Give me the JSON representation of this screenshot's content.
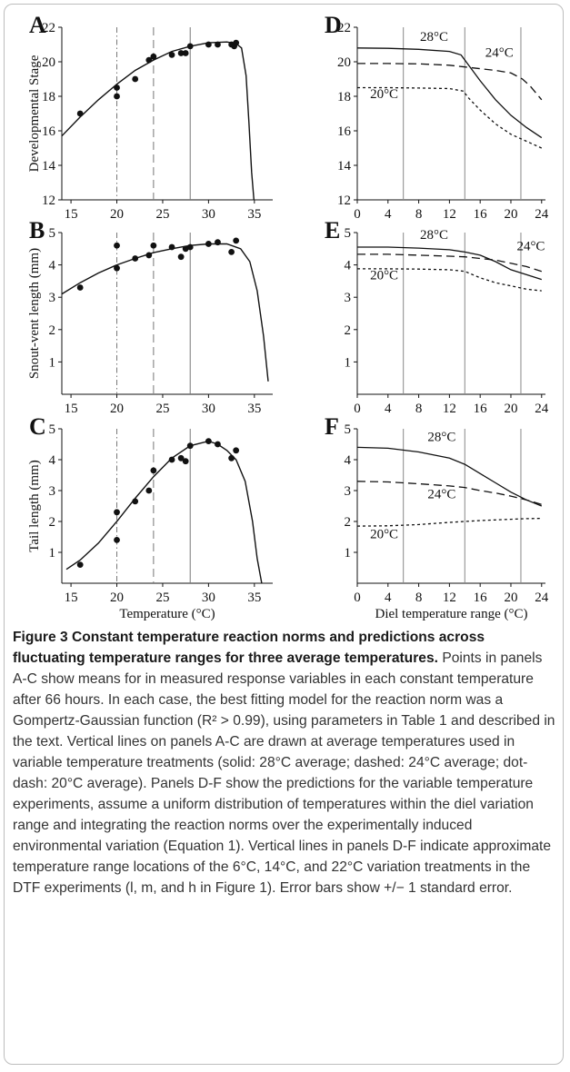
{
  "chart_data": [
    {
      "panel": "A",
      "type": "scatter",
      "ylabel": "Developmental Stage",
      "xlabel": "",
      "xlim": [
        14,
        37
      ],
      "ylim": [
        12,
        22
      ],
      "xticks": [
        15,
        20,
        25,
        30,
        35
      ],
      "yticks": [
        12,
        14,
        16,
        18,
        20,
        22
      ],
      "points": [
        [
          16,
          17.0
        ],
        [
          20,
          18.0
        ],
        [
          20,
          18.5
        ],
        [
          22,
          19.0
        ],
        [
          23.5,
          20.1
        ],
        [
          24,
          20.3
        ],
        [
          26,
          20.4
        ],
        [
          27,
          20.5
        ],
        [
          27.5,
          20.5
        ],
        [
          28,
          20.9
        ],
        [
          30,
          21.0
        ],
        [
          31,
          21.0
        ],
        [
          32.5,
          21.0
        ],
        [
          32.8,
          20.9
        ],
        [
          33,
          21.1
        ]
      ],
      "fit": [
        [
          14,
          15.7
        ],
        [
          16,
          16.8
        ],
        [
          18,
          17.8
        ],
        [
          20,
          18.7
        ],
        [
          22,
          19.5
        ],
        [
          24,
          20.1
        ],
        [
          26,
          20.6
        ],
        [
          28,
          20.9
        ],
        [
          30,
          21.1
        ],
        [
          32,
          21.15
        ],
        [
          33,
          21.05
        ],
        [
          33.6,
          20.8
        ],
        [
          34.1,
          19.2
        ],
        [
          34.4,
          16.5
        ],
        [
          34.7,
          13.6
        ],
        [
          34.95,
          12.0
        ]
      ],
      "verticals": {
        "solid": 28,
        "dashed": 24,
        "dotdash": 20
      }
    },
    {
      "panel": "B",
      "type": "scatter",
      "ylabel": "Snout-vent length (mm)",
      "xlabel": "",
      "xlim": [
        14,
        37
      ],
      "ylim": [
        0,
        5
      ],
      "xticks": [
        15,
        20,
        25,
        30,
        35
      ],
      "yticks": [
        1,
        2,
        3,
        4,
        5
      ],
      "points": [
        [
          16,
          3.3
        ],
        [
          20,
          3.9
        ],
        [
          20,
          4.6
        ],
        [
          22,
          4.2
        ],
        [
          23.5,
          4.3
        ],
        [
          24,
          4.6
        ],
        [
          26,
          4.55
        ],
        [
          27,
          4.25
        ],
        [
          27.5,
          4.5
        ],
        [
          28,
          4.55
        ],
        [
          30,
          4.65
        ],
        [
          31,
          4.7
        ],
        [
          32.5,
          4.4
        ],
        [
          33,
          4.75
        ]
      ],
      "fit": [
        [
          14,
          3.1
        ],
        [
          16,
          3.45
        ],
        [
          18,
          3.75
        ],
        [
          20,
          4.0
        ],
        [
          22,
          4.2
        ],
        [
          24,
          4.38
        ],
        [
          26,
          4.5
        ],
        [
          28,
          4.6
        ],
        [
          30,
          4.65
        ],
        [
          32,
          4.65
        ],
        [
          33.5,
          4.5
        ],
        [
          34.5,
          4.1
        ],
        [
          35.3,
          3.2
        ],
        [
          36,
          1.8
        ],
        [
          36.5,
          0.4
        ]
      ],
      "verticals": {
        "solid": 28,
        "dashed": 24,
        "dotdash": 20
      }
    },
    {
      "panel": "C",
      "type": "scatter",
      "ylabel": "Tail length (mm)",
      "xlabel": "Temperature (°C)",
      "xlim": [
        14,
        37
      ],
      "ylim": [
        0,
        5
      ],
      "xticks": [
        15,
        20,
        25,
        30,
        35
      ],
      "yticks": [
        1,
        2,
        3,
        4,
        5
      ],
      "points": [
        [
          16,
          0.6
        ],
        [
          20,
          1.4
        ],
        [
          20,
          2.3
        ],
        [
          22,
          2.65
        ],
        [
          23.5,
          3.0
        ],
        [
          24,
          3.65
        ],
        [
          26,
          4.0
        ],
        [
          27,
          4.05
        ],
        [
          27.5,
          3.95
        ],
        [
          28,
          4.45
        ],
        [
          30,
          4.6
        ],
        [
          31,
          4.5
        ],
        [
          32.5,
          4.05
        ],
        [
          33,
          4.3
        ]
      ],
      "fit": [
        [
          14.5,
          0.45
        ],
        [
          16,
          0.75
        ],
        [
          18,
          1.3
        ],
        [
          20,
          2.0
        ],
        [
          22,
          2.75
        ],
        [
          24,
          3.45
        ],
        [
          26,
          4.05
        ],
        [
          28,
          4.45
        ],
        [
          30,
          4.6
        ],
        [
          31,
          4.5
        ],
        [
          32,
          4.3
        ],
        [
          33,
          4.0
        ],
        [
          34,
          3.3
        ],
        [
          34.8,
          2.0
        ],
        [
          35.3,
          0.8
        ],
        [
          35.8,
          0.0
        ]
      ],
      "verticals": {
        "solid": 28,
        "dashed": 24,
        "dotdash": 20
      }
    },
    {
      "panel": "D",
      "type": "line",
      "xlabel": "",
      "ylabel": "",
      "xlim": [
        0,
        24.5
      ],
      "ylim": [
        12,
        22
      ],
      "xticks": [
        0,
        4,
        8,
        12,
        16,
        20,
        24
      ],
      "yticks": [
        12,
        14,
        16,
        18,
        20,
        22
      ],
      "verticals": [
        6,
        14,
        21.3
      ],
      "series": [
        {
          "name": "28°C",
          "style": "solid",
          "points": [
            [
              0,
              20.8
            ],
            [
              4,
              20.78
            ],
            [
              8,
              20.72
            ],
            [
              12,
              20.6
            ],
            [
              13.5,
              20.4
            ],
            [
              14.5,
              19.8
            ],
            [
              16,
              18.9
            ],
            [
              18,
              17.8
            ],
            [
              20,
              16.9
            ],
            [
              22,
              16.2
            ],
            [
              24,
              15.6
            ]
          ]
        },
        {
          "name": "24°C",
          "style": "dashed",
          "points": [
            [
              0,
              19.9
            ],
            [
              4,
              19.9
            ],
            [
              8,
              19.88
            ],
            [
              12,
              19.8
            ],
            [
              14,
              19.7
            ],
            [
              16,
              19.6
            ],
            [
              18,
              19.5
            ],
            [
              20,
              19.35
            ],
            [
              21.5,
              19.0
            ],
            [
              22.5,
              18.6
            ],
            [
              24,
              17.8
            ]
          ]
        },
        {
          "name": "20°C",
          "style": "dotted",
          "points": [
            [
              0,
              18.5
            ],
            [
              4,
              18.5
            ],
            [
              8,
              18.48
            ],
            [
              12,
              18.45
            ],
            [
              13.8,
              18.3
            ],
            [
              14.5,
              17.9
            ],
            [
              16,
              17.2
            ],
            [
              18,
              16.4
            ],
            [
              20,
              15.8
            ],
            [
              22,
              15.4
            ],
            [
              24,
              15.0
            ]
          ]
        }
      ],
      "labels": [
        {
          "text": "28°C",
          "x": 10,
          "y": 21.2
        },
        {
          "text": "24°C",
          "x": 18.5,
          "y": 20.3
        },
        {
          "text": "20°C",
          "x": 3.5,
          "y": 17.9
        }
      ]
    },
    {
      "panel": "E",
      "type": "line",
      "xlabel": "",
      "ylabel": "",
      "xlim": [
        0,
        24.5
      ],
      "ylim": [
        0,
        5
      ],
      "xticks": [
        0,
        4,
        8,
        12,
        16,
        20,
        24
      ],
      "yticks": [
        1,
        2,
        3,
        4,
        5
      ],
      "verticals": [
        6,
        14,
        21.3
      ],
      "series": [
        {
          "name": "28°C",
          "style": "solid",
          "points": [
            [
              0,
              4.55
            ],
            [
              4,
              4.55
            ],
            [
              8,
              4.52
            ],
            [
              12,
              4.47
            ],
            [
              14,
              4.4
            ],
            [
              16,
              4.3
            ],
            [
              18,
              4.1
            ],
            [
              20,
              3.85
            ],
            [
              22,
              3.7
            ],
            [
              24,
              3.55
            ]
          ]
        },
        {
          "name": "24°C",
          "style": "dashed",
          "points": [
            [
              0,
              4.33
            ],
            [
              4,
              4.33
            ],
            [
              8,
              4.3
            ],
            [
              12,
              4.27
            ],
            [
              14,
              4.25
            ],
            [
              16,
              4.2
            ],
            [
              18,
              4.15
            ],
            [
              20,
              4.05
            ],
            [
              22,
              3.95
            ],
            [
              24,
              3.8
            ]
          ]
        },
        {
          "name": "20°C",
          "style": "dotted",
          "points": [
            [
              0,
              3.88
            ],
            [
              4,
              3.88
            ],
            [
              8,
              3.87
            ],
            [
              12,
              3.85
            ],
            [
              14,
              3.8
            ],
            [
              16,
              3.6
            ],
            [
              18,
              3.45
            ],
            [
              20,
              3.35
            ],
            [
              22,
              3.25
            ],
            [
              24,
              3.2
            ]
          ]
        }
      ],
      "labels": [
        {
          "text": "28°C",
          "x": 10,
          "y": 4.8
        },
        {
          "text": "24°C",
          "x": 22.6,
          "y": 4.45
        },
        {
          "text": "20°C",
          "x": 3.5,
          "y": 3.55
        }
      ]
    },
    {
      "panel": "F",
      "type": "line",
      "xlabel": "Diel temperature range (°C)",
      "ylabel": "",
      "xlim": [
        0,
        24.5
      ],
      "ylim": [
        0,
        5
      ],
      "xticks": [
        0,
        4,
        8,
        12,
        16,
        20,
        24
      ],
      "yticks": [
        1,
        2,
        3,
        4,
        5
      ],
      "verticals": [
        6,
        14,
        21.3
      ],
      "series": [
        {
          "name": "28°C",
          "style": "solid",
          "points": [
            [
              0,
              4.4
            ],
            [
              4,
              4.37
            ],
            [
              8,
              4.25
            ],
            [
              12,
              4.05
            ],
            [
              14,
              3.85
            ],
            [
              16,
              3.55
            ],
            [
              18,
              3.25
            ],
            [
              20,
              2.95
            ],
            [
              22,
              2.7
            ],
            [
              24,
              2.5
            ]
          ]
        },
        {
          "name": "24°C",
          "style": "dashed",
          "points": [
            [
              0,
              3.3
            ],
            [
              4,
              3.28
            ],
            [
              8,
              3.22
            ],
            [
              12,
              3.15
            ],
            [
              14,
              3.1
            ],
            [
              16,
              3.0
            ],
            [
              18,
              2.92
            ],
            [
              20,
              2.82
            ],
            [
              22,
              2.7
            ],
            [
              24,
              2.55
            ]
          ]
        },
        {
          "name": "20°C",
          "style": "dotted",
          "points": [
            [
              0,
              1.85
            ],
            [
              4,
              1.86
            ],
            [
              8,
              1.9
            ],
            [
              12,
              1.97
            ],
            [
              14,
              2.0
            ],
            [
              16,
              2.03
            ],
            [
              18,
              2.05
            ],
            [
              20,
              2.07
            ],
            [
              22,
              2.09
            ],
            [
              24,
              2.1
            ]
          ]
        }
      ],
      "labels": [
        {
          "text": "28°C",
          "x": 11,
          "y": 4.6
        },
        {
          "text": "24°C",
          "x": 11,
          "y": 2.75
        },
        {
          "text": "20°C",
          "x": 3.5,
          "y": 1.45
        }
      ]
    }
  ],
  "caption": {
    "title": "Figure 3 Constant temperature reaction norms and predictions across fluctuating temperature ranges for three average temperatures.",
    "body": "Points in panels A-C show means for in measured response variables in each constant temperature after 66 hours. In each case, the best fitting model for the reaction norm was a Gompertz-Gaussian function (R² > 0.99), using parameters in Table 1 and described in the text. Vertical lines on panels A-C are drawn at average temperatures used in variable temperature treatments (solid: 28°C average; dashed: 24°C average; dot-dash: 20°C average). Panels D-F show the predictions for the variable temperature experiments, assume a uniform distribution of temperatures within the diel variation range and integrating the reaction norms over the experimentally induced environmental variation (Equation 1). Vertical lines in panels D-F indicate approximate temperature range locations of the 6°C, 14°C, and 22°C variation treatments in the DTF experiments (l, m, and h in Figure 1). Error bars show +/− 1 standard error."
  }
}
